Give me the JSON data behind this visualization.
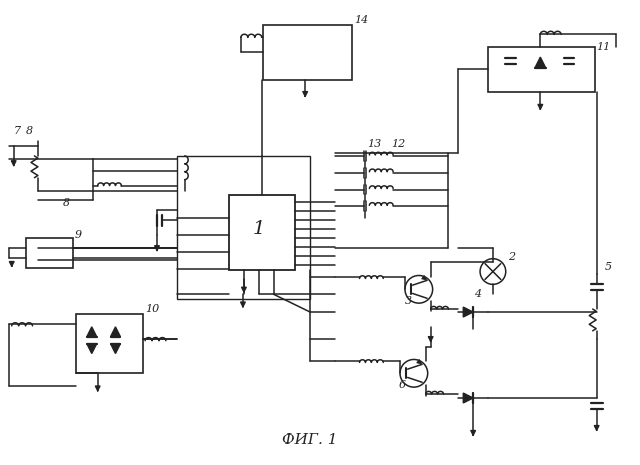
{
  "title": "ФИГ. 1",
  "bg_color": "#ffffff",
  "line_color": "#222222",
  "figsize": [
    6.4,
    4.65
  ],
  "dpi": 100
}
